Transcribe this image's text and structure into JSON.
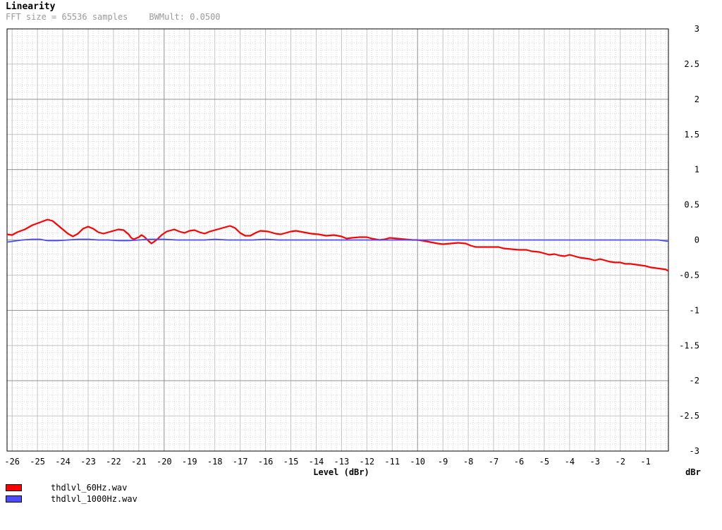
{
  "header": {
    "title": "Linearity",
    "fft_text": "FFT size = 65536 samples",
    "bw_text": "BWMult: 0.0500"
  },
  "colors": {
    "background": "#ffffff",
    "grid_major": "#a0a0a0",
    "grid_minor": "#d4d4d4",
    "series_60hz": "#ff0000",
    "series_1000hz": "#4c4cff",
    "subtitle": "#9a9a9a"
  },
  "chart_data": {
    "type": "line",
    "title": "Linearity",
    "xlabel": "Level (dBr)",
    "ylabel": "",
    "y_unit_label": "dBr",
    "xlim": [
      -26.2,
      -0.1
    ],
    "ylim": [
      -3,
      3
    ],
    "x_ticks": [
      -26,
      -25,
      -24,
      -23,
      -22,
      -21,
      -20,
      -19,
      -18,
      -17,
      -16,
      -15,
      -14,
      -13,
      -12,
      -11,
      -10,
      -9,
      -8,
      -7,
      -6,
      -5,
      -4,
      -3,
      -2,
      -1
    ],
    "x_tick_labels": [
      "-26",
      "-25",
      "-24",
      "-23",
      "-22",
      "-21",
      "-20",
      "-19",
      "-18",
      "-17",
      "-16",
      "-15",
      "-14",
      "-13",
      "-12",
      "-11",
      "-10",
      "-9",
      "-8",
      "-7",
      "-6",
      "-5",
      "-4",
      "-3",
      "-2",
      "-1"
    ],
    "y_ticks": [
      3,
      2.5,
      2,
      1.5,
      1,
      0.5,
      0,
      -0.5,
      -1,
      -1.5,
      -2,
      -2.5,
      -3
    ],
    "y_tick_labels": [
      "3",
      "2.5",
      "2",
      "1.5",
      "1",
      "0.5",
      "0",
      "-0.5",
      "-1",
      "-1.5",
      "-2",
      "-2.5",
      "-3"
    ],
    "grid": true,
    "legend_position": "bottom-left",
    "series": [
      {
        "name": "thdlvl_60Hz.wav",
        "color": "#ff0000",
        "points": [
          [
            -26.2,
            0.08
          ],
          [
            -26.0,
            0.07
          ],
          [
            -25.8,
            0.11
          ],
          [
            -25.5,
            0.15
          ],
          [
            -25.2,
            0.21
          ],
          [
            -24.9,
            0.25
          ],
          [
            -24.6,
            0.29
          ],
          [
            -24.4,
            0.27
          ],
          [
            -24.2,
            0.21
          ],
          [
            -24.0,
            0.15
          ],
          [
            -23.8,
            0.09
          ],
          [
            -23.6,
            0.05
          ],
          [
            -23.4,
            0.09
          ],
          [
            -23.2,
            0.16
          ],
          [
            -23.0,
            0.19
          ],
          [
            -22.8,
            0.16
          ],
          [
            -22.6,
            0.11
          ],
          [
            -22.4,
            0.09
          ],
          [
            -22.1,
            0.12
          ],
          [
            -21.8,
            0.15
          ],
          [
            -21.6,
            0.14
          ],
          [
            -21.4,
            0.08
          ],
          [
            -21.3,
            0.03
          ],
          [
            -21.2,
            0.01
          ],
          [
            -21.0,
            0.04
          ],
          [
            -20.9,
            0.07
          ],
          [
            -20.8,
            0.05
          ],
          [
            -20.6,
            -0.02
          ],
          [
            -20.5,
            -0.05
          ],
          [
            -20.3,
            0.0
          ],
          [
            -20.1,
            0.07
          ],
          [
            -19.9,
            0.12
          ],
          [
            -19.6,
            0.15
          ],
          [
            -19.4,
            0.12
          ],
          [
            -19.2,
            0.1
          ],
          [
            -19.0,
            0.13
          ],
          [
            -18.8,
            0.14
          ],
          [
            -18.6,
            0.11
          ],
          [
            -18.4,
            0.09
          ],
          [
            -18.2,
            0.12
          ],
          [
            -17.9,
            0.15
          ],
          [
            -17.6,
            0.18
          ],
          [
            -17.4,
            0.2
          ],
          [
            -17.2,
            0.17
          ],
          [
            -17.0,
            0.1
          ],
          [
            -16.8,
            0.06
          ],
          [
            -16.6,
            0.06
          ],
          [
            -16.4,
            0.1
          ],
          [
            -16.2,
            0.13
          ],
          [
            -15.9,
            0.12
          ],
          [
            -15.6,
            0.09
          ],
          [
            -15.4,
            0.08
          ],
          [
            -15.2,
            0.1
          ],
          [
            -15.0,
            0.12
          ],
          [
            -14.8,
            0.13
          ],
          [
            -14.5,
            0.11
          ],
          [
            -14.2,
            0.09
          ],
          [
            -13.9,
            0.08
          ],
          [
            -13.6,
            0.06
          ],
          [
            -13.3,
            0.07
          ],
          [
            -13.0,
            0.05
          ],
          [
            -12.8,
            0.02
          ],
          [
            -12.6,
            0.03
          ],
          [
            -12.3,
            0.04
          ],
          [
            -12.0,
            0.04
          ],
          [
            -11.8,
            0.02
          ],
          [
            -11.5,
            0.0
          ],
          [
            -11.3,
            0.01
          ],
          [
            -11.1,
            0.03
          ],
          [
            -10.8,
            0.02
          ],
          [
            -10.5,
            0.01
          ],
          [
            -10.2,
            0.0
          ],
          [
            -10.0,
            0.0
          ],
          [
            -9.8,
            -0.01
          ],
          [
            -9.5,
            -0.03
          ],
          [
            -9.2,
            -0.05
          ],
          [
            -9.0,
            -0.06
          ],
          [
            -8.7,
            -0.05
          ],
          [
            -8.4,
            -0.04
          ],
          [
            -8.1,
            -0.05
          ],
          [
            -7.9,
            -0.08
          ],
          [
            -7.7,
            -0.1
          ],
          [
            -7.4,
            -0.1
          ],
          [
            -7.1,
            -0.1
          ],
          [
            -6.8,
            -0.1
          ],
          [
            -6.6,
            -0.12
          ],
          [
            -6.3,
            -0.13
          ],
          [
            -6.0,
            -0.14
          ],
          [
            -5.7,
            -0.14
          ],
          [
            -5.5,
            -0.16
          ],
          [
            -5.2,
            -0.17
          ],
          [
            -5.0,
            -0.19
          ],
          [
            -4.8,
            -0.21
          ],
          [
            -4.6,
            -0.2
          ],
          [
            -4.4,
            -0.22
          ],
          [
            -4.2,
            -0.23
          ],
          [
            -4.0,
            -0.21
          ],
          [
            -3.8,
            -0.23
          ],
          [
            -3.6,
            -0.25
          ],
          [
            -3.4,
            -0.26
          ],
          [
            -3.2,
            -0.27
          ],
          [
            -3.0,
            -0.29
          ],
          [
            -2.8,
            -0.27
          ],
          [
            -2.6,
            -0.29
          ],
          [
            -2.4,
            -0.31
          ],
          [
            -2.2,
            -0.32
          ],
          [
            -2.0,
            -0.32
          ],
          [
            -1.8,
            -0.34
          ],
          [
            -1.6,
            -0.34
          ],
          [
            -1.4,
            -0.35
          ],
          [
            -1.2,
            -0.36
          ],
          [
            -1.0,
            -0.37
          ],
          [
            -0.8,
            -0.39
          ],
          [
            -0.6,
            -0.4
          ],
          [
            -0.4,
            -0.41
          ],
          [
            -0.2,
            -0.42
          ],
          [
            -0.1,
            -0.44
          ]
        ]
      },
      {
        "name": "thdlvl_1000Hz.wav",
        "color": "#4c4cff",
        "points": [
          [
            -26.2,
            -0.03
          ],
          [
            -26.0,
            -0.02
          ],
          [
            -25.6,
            0.0
          ],
          [
            -25.2,
            0.01
          ],
          [
            -24.9,
            0.01
          ],
          [
            -24.6,
            -0.01
          ],
          [
            -24.2,
            -0.01
          ],
          [
            -23.8,
            0.0
          ],
          [
            -23.4,
            0.01
          ],
          [
            -23.0,
            0.01
          ],
          [
            -22.6,
            0.0
          ],
          [
            -22.2,
            0.0
          ],
          [
            -21.8,
            -0.01
          ],
          [
            -21.4,
            -0.01
          ],
          [
            -21.0,
            0.0
          ],
          [
            -20.6,
            0.01
          ],
          [
            -20.0,
            0.01
          ],
          [
            -19.5,
            0.0
          ],
          [
            -19.0,
            0.0
          ],
          [
            -18.4,
            0.0
          ],
          [
            -18.0,
            0.01
          ],
          [
            -17.5,
            0.0
          ],
          [
            -17.0,
            0.0
          ],
          [
            -16.5,
            0.0
          ],
          [
            -16.0,
            0.01
          ],
          [
            -15.5,
            0.0
          ],
          [
            -15.0,
            0.0
          ],
          [
            -14.0,
            0.0
          ],
          [
            -13.0,
            0.0
          ],
          [
            -12.0,
            0.0
          ],
          [
            -11.0,
            0.0
          ],
          [
            -10.0,
            0.0
          ],
          [
            -9.0,
            0.0
          ],
          [
            -8.0,
            0.0
          ],
          [
            -7.0,
            0.0
          ],
          [
            -6.0,
            0.0
          ],
          [
            -5.0,
            0.0
          ],
          [
            -4.0,
            0.0
          ],
          [
            -3.0,
            0.0
          ],
          [
            -2.0,
            0.0
          ],
          [
            -1.0,
            0.0
          ],
          [
            -0.5,
            0.0
          ],
          [
            -0.3,
            -0.01
          ],
          [
            -0.1,
            -0.02
          ]
        ]
      }
    ]
  }
}
